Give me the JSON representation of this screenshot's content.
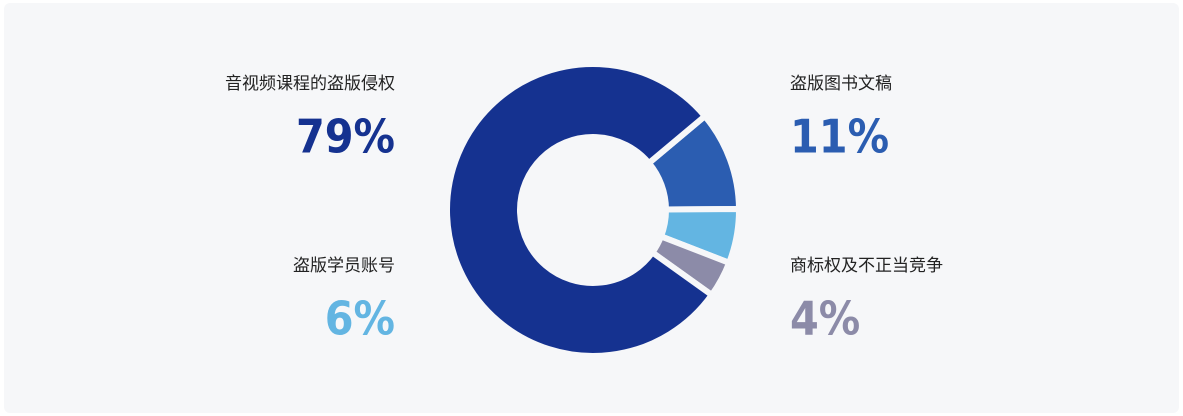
{
  "chart_data": {
    "type": "donut",
    "categories": [
      "音视频课程的盗版侵权",
      "盗版图书文稿",
      "盗版学员账号",
      "商标权及不正当竞争"
    ],
    "values": [
      79,
      11,
      6,
      4
    ],
    "value_labels": [
      "79%",
      "11%",
      "6%",
      "4%"
    ],
    "colors": [
      "#153290",
      "#2b5db1",
      "#63b5e2",
      "#8c8ba8"
    ]
  }
}
